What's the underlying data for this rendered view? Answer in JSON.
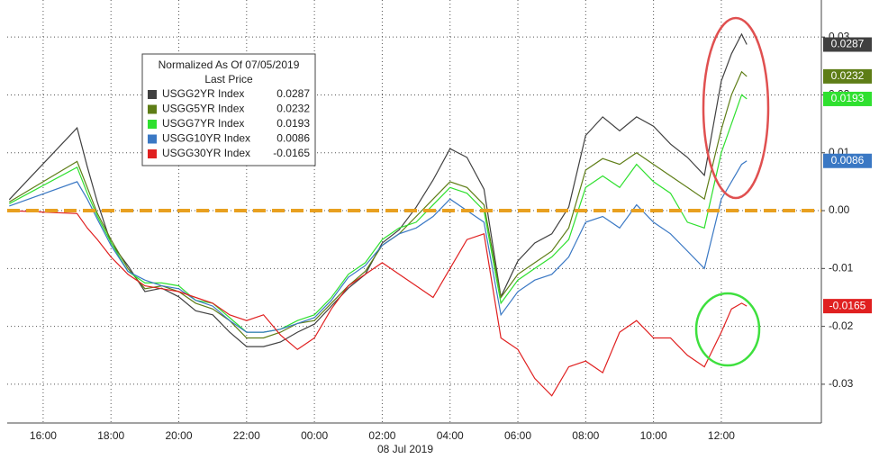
{
  "chart_data": {
    "type": "line",
    "legend_title": "Normalized As Of 07/05/2019",
    "legend_subtitle": "Last Price",
    "date_label": "08 Jul 2019",
    "x": [
      15.0,
      17.0,
      17.3,
      17.6,
      18.0,
      18.5,
      19.0,
      19.5,
      20.0,
      20.5,
      21.0,
      21.5,
      22.0,
      22.5,
      23.0,
      23.5,
      24.0,
      24.5,
      25.0,
      25.5,
      26.0,
      26.5,
      27.0,
      27.5,
      28.0,
      28.5,
      29.0,
      29.5,
      30.0,
      30.5,
      31.0,
      31.5,
      32.0,
      32.5,
      33.0,
      33.5,
      34.0,
      34.5,
      35.0,
      35.5,
      36.0,
      36.3,
      36.6,
      36.75
    ],
    "xlim": [
      14.94,
      38.95
    ],
    "xticks": [
      {
        "value": 16,
        "label": "16:00"
      },
      {
        "value": 18,
        "label": "18:00"
      },
      {
        "value": 20,
        "label": "20:00"
      },
      {
        "value": 22,
        "label": "22:00"
      },
      {
        "value": 24,
        "label": "00:00"
      },
      {
        "value": 26,
        "label": "02:00"
      },
      {
        "value": 28,
        "label": "04:00"
      },
      {
        "value": 30,
        "label": "06:00"
      },
      {
        "value": 32,
        "label": "08:00"
      },
      {
        "value": 34,
        "label": "10:00"
      },
      {
        "value": 36,
        "label": "12:00"
      }
    ],
    "ylim": [
      -0.0367,
      0.0364
    ],
    "yticks": [
      -0.03,
      -0.02,
      -0.01,
      {
        "value": 0,
        "label": "0.00"
      },
      0.01,
      0.02,
      0.03
    ],
    "grid": true,
    "series": [
      {
        "name": "USGG2YR Index",
        "color": "#404040",
        "values": [
          0.0019,
          0.0143,
          0.0076,
          0.0014,
          -0.0056,
          -0.0095,
          -0.014,
          -0.0134,
          -0.0149,
          -0.0173,
          -0.018,
          -0.021,
          -0.0235,
          -0.0235,
          -0.0227,
          -0.021,
          -0.0196,
          -0.0165,
          -0.0134,
          -0.011,
          -0.0056,
          -0.0033,
          0.0006,
          0.0053,
          0.0107,
          0.0092,
          0.0037,
          -0.0149,
          -0.0087,
          -0.0056,
          -0.004,
          0.0006,
          0.013,
          0.0162,
          0.0138,
          0.0162,
          0.0146,
          0.0115,
          0.0092,
          0.0061,
          0.0224,
          0.0271,
          0.0305,
          0.0287
        ]
      },
      {
        "name": "USGG5YR Index",
        "color": "#5e7d16",
        "values": [
          0.0015,
          0.0085,
          0.004,
          -0.0005,
          -0.005,
          -0.01,
          -0.0135,
          -0.013,
          -0.014,
          -0.016,
          -0.017,
          -0.019,
          -0.022,
          -0.022,
          -0.021,
          -0.0195,
          -0.019,
          -0.016,
          -0.013,
          -0.0105,
          -0.006,
          -0.004,
          -0.001,
          0.002,
          0.005,
          0.004,
          0.001,
          -0.015,
          -0.011,
          -0.009,
          -0.007,
          -0.003,
          0.007,
          0.009,
          0.008,
          0.01,
          0.008,
          0.006,
          0.004,
          0.002,
          0.014,
          0.02,
          0.024,
          0.0232
        ]
      },
      {
        "name": "USGG7YR Index",
        "color": "#2fe02f",
        "values": [
          0.0012,
          0.0075,
          0.003,
          -0.001,
          -0.0055,
          -0.0105,
          -0.0125,
          -0.0125,
          -0.013,
          -0.0155,
          -0.016,
          -0.0185,
          -0.021,
          -0.021,
          -0.0205,
          -0.019,
          -0.018,
          -0.015,
          -0.011,
          -0.009,
          -0.005,
          -0.003,
          -0.002,
          0.001,
          0.004,
          0.003,
          0.0,
          -0.016,
          -0.012,
          -0.01,
          -0.008,
          -0.005,
          0.004,
          0.006,
          0.004,
          0.008,
          0.005,
          0.003,
          -0.002,
          -0.003,
          0.01,
          0.015,
          0.02,
          0.0193
        ]
      },
      {
        "name": "USGG10YR Index",
        "color": "#3a78c4",
        "values": [
          0.0008,
          0.005,
          0.002,
          -0.0015,
          -0.006,
          -0.0105,
          -0.012,
          -0.013,
          -0.0135,
          -0.0155,
          -0.0165,
          -0.019,
          -0.021,
          -0.021,
          -0.0205,
          -0.0195,
          -0.0185,
          -0.0155,
          -0.0115,
          -0.0095,
          -0.006,
          -0.004,
          -0.003,
          -0.001,
          0.002,
          0.0,
          -0.002,
          -0.018,
          -0.014,
          -0.012,
          -0.011,
          -0.008,
          -0.002,
          -0.001,
          -0.003,
          0.001,
          -0.002,
          -0.004,
          -0.007,
          -0.01,
          0.002,
          0.005,
          0.008,
          0.0086
        ]
      },
      {
        "name": "USGG30YR Index",
        "color": "#e02020",
        "values": [
          0.0,
          -0.0005,
          -0.003,
          -0.005,
          -0.008,
          -0.011,
          -0.013,
          -0.0135,
          -0.014,
          -0.015,
          -0.016,
          -0.018,
          -0.019,
          -0.018,
          -0.0215,
          -0.024,
          -0.022,
          -0.017,
          -0.013,
          -0.011,
          -0.009,
          -0.011,
          -0.013,
          -0.015,
          -0.01,
          -0.005,
          -0.004,
          -0.022,
          -0.024,
          -0.029,
          -0.032,
          -0.027,
          -0.026,
          -0.028,
          -0.021,
          -0.019,
          -0.022,
          -0.022,
          -0.025,
          -0.027,
          -0.021,
          -0.017,
          -0.016,
          -0.0165
        ]
      }
    ]
  }
}
